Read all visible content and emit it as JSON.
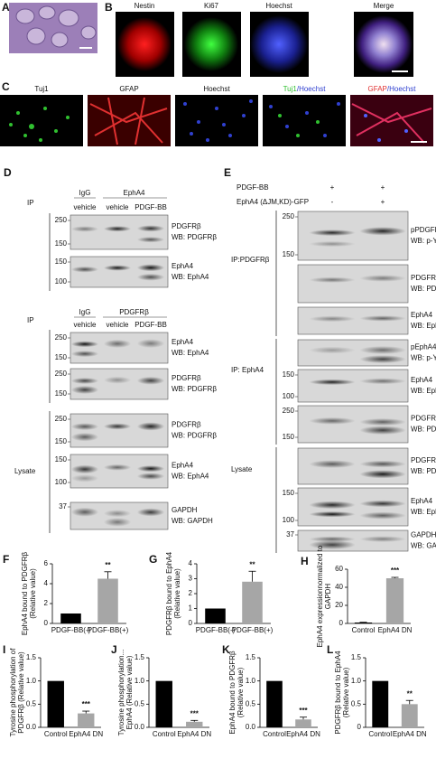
{
  "A": {
    "letter": "A"
  },
  "B": {
    "letter": "B",
    "labels": [
      "Nestin",
      "Ki67",
      "Hoechst",
      "Merge"
    ]
  },
  "C": {
    "letter": "C",
    "labels": [
      "Tuj1",
      "GFAP",
      "Hoechst",
      [
        "Tuj1",
        "/Hoechst"
      ],
      [
        "GFAP",
        "/Hoechst"
      ]
    ]
  },
  "D": {
    "letter": "D",
    "ip_blocks": [
      {
        "ip": "IP",
        "heads": [
          "IgG",
          "EphA4"
        ],
        "lanes": [
          "vehicle",
          "vehicle",
          "PDGF-BB"
        ],
        "blots": [
          {
            "markers": [
              "250",
              "150"
            ],
            "protein": "PDGFRβ",
            "wb": "WB: PDGFRβ"
          },
          {
            "markers": [
              "150",
              "100"
            ],
            "protein": "EphA4",
            "wb": "WB: EphA4"
          }
        ]
      },
      {
        "ip": "IP",
        "heads": [
          "IgG",
          "PDGFRβ"
        ],
        "lanes": [
          "vehicle",
          "vehicle",
          "PDGF-BB"
        ],
        "blots": [
          {
            "markers": [
              "250",
              "150"
            ],
            "protein": "EphA4",
            "wb": "WB: EphA4"
          },
          {
            "markers": [
              "250",
              "150"
            ],
            "protein": "PDGFRβ",
            "wb": "WB: PDGFRβ"
          }
        ]
      }
    ],
    "lysate": {
      "label": "Lysate",
      "blots": [
        {
          "markers": [
            "250",
            "150"
          ],
          "protein": "PDGFRβ",
          "wb": "WB: PDGFRβ"
        },
        {
          "markers": [
            "150",
            "100"
          ],
          "protein": "EphA4",
          "wb": "WB: EphA4"
        },
        {
          "markers": [
            "37"
          ],
          "protein": "GAPDH",
          "wb": "WB: GAPDH"
        }
      ]
    }
  },
  "E": {
    "letter": "E",
    "rows": [
      {
        "label": "PDGF-BB",
        "signs": [
          "+",
          "+"
        ]
      },
      {
        "label": "EphA4 (ΔJM,KD)-GFP",
        "signs": [
          "-",
          "+"
        ]
      }
    ],
    "groups": [
      {
        "label": "IP:PDGFRβ",
        "blots": [
          {
            "markers": [
              "250",
              "150"
            ],
            "protein": "pPDGFRβ",
            "wb": "WB: p-Y"
          },
          {
            "protein": "PDGFRβ",
            "wb": "WB: PDGFRβ"
          },
          {
            "protein": "EphA4",
            "wb": "WB: EphA4"
          }
        ]
      },
      {
        "label": "IP: EphA4",
        "blots": [
          {
            "protein": "pEphA4",
            "wb": "WB: p-Y"
          },
          {
            "markers": [
              "150",
              "100"
            ],
            "protein": "EphA4",
            "wb": "WB: EphA4"
          },
          {
            "markers": [
              "250",
              "150"
            ],
            "protein": "PDGFRβ",
            "wb": "WB: PDGFRβ"
          }
        ]
      },
      {
        "label": "Lysate",
        "blots": [
          {
            "protein": "PDGFRβ",
            "wb": "WB: PDGFRβ"
          },
          {
            "markers": [
              "150",
              "100"
            ],
            "protein": "EphA4",
            "wb": "WB: EphA4"
          },
          {
            "markers": [
              "37"
            ],
            "protein": "GAPDH",
            "wb": "WB: GAPDH"
          }
        ]
      }
    ]
  },
  "chart_data": [
    {
      "type": "bar",
      "panel": "F",
      "ylabel": [
        "EphA4 bound to PDGFRβ",
        "(Relative value)"
      ],
      "categories": [
        "PDGF-BB(-)",
        "PDGF-BB(+)"
      ],
      "values": [
        1,
        4.5
      ],
      "errors": [
        0,
        0.7
      ],
      "colors": [
        "#000000",
        "#a6a6a6"
      ],
      "ylim": [
        0,
        6
      ],
      "yticks": [
        0,
        2,
        4,
        6
      ],
      "annotation": "**"
    },
    {
      "type": "bar",
      "panel": "G",
      "ylabel": [
        "PDGFRβ bound to EphA4",
        "(Relative value)"
      ],
      "categories": [
        "PDGF-BB(-)",
        "PDGF-BB(+)"
      ],
      "values": [
        1,
        2.8
      ],
      "errors": [
        0,
        0.7
      ],
      "colors": [
        "#000000",
        "#a6a6a6"
      ],
      "ylim": [
        0,
        4
      ],
      "yticks": [
        0,
        1,
        2,
        3,
        4
      ],
      "annotation": "**"
    },
    {
      "type": "bar",
      "panel": "H",
      "ylabel": [
        "EphA4 expressionnormalized to",
        "GAPDH"
      ],
      "categories": [
        "Control",
        "EphA4 DN"
      ],
      "values": [
        1,
        50
      ],
      "errors": [
        0.3,
        1
      ],
      "colors": [
        "#000000",
        "#a6a6a6"
      ],
      "ylim": [
        0,
        60
      ],
      "yticks": [
        0,
        20,
        40,
        60
      ],
      "annotation": "***"
    },
    {
      "type": "bar",
      "panel": "I",
      "ylabel": [
        "Tyrosine phosphorylation of",
        "PDGFRβ (Relative value)"
      ],
      "categories": [
        "Control",
        "EphA4 DN"
      ],
      "values": [
        1.0,
        0.3
      ],
      "errors": [
        0,
        0.05
      ],
      "colors": [
        "#000000",
        "#a6a6a6"
      ],
      "ylim": [
        0,
        1.5
      ],
      "yticks": [
        {
          "value": 0,
          "label": "0.0"
        },
        0.5,
        {
          "value": 1,
          "label": "1.0"
        },
        1.5
      ],
      "annotation": "***"
    },
    {
      "type": "bar",
      "panel": "J",
      "ylabel": [
        "Tyrosine phosphorylation...",
        "EphA4 (Relative value)"
      ],
      "categories": [
        "Control",
        "EphA4 DN"
      ],
      "values": [
        1.0,
        0.12
      ],
      "errors": [
        0,
        0.03
      ],
      "colors": [
        "#000000",
        "#a6a6a6"
      ],
      "ylim": [
        0,
        1.5
      ],
      "yticks": [
        {
          "value": 0,
          "label": "0.0"
        },
        0.5,
        {
          "value": 1,
          "label": "1.0"
        },
        1.5
      ],
      "annotation": "***"
    },
    {
      "type": "bar",
      "panel": "K",
      "ylabel": [
        "EphA4 bound to PDGFRβ",
        "(Relative value)"
      ],
      "categories": [
        "Control",
        "EphA4 DN"
      ],
      "values": [
        1.0,
        0.17
      ],
      "errors": [
        0,
        0.05
      ],
      "colors": [
        "#000000",
        "#a6a6a6"
      ],
      "ylim": [
        0,
        1.5
      ],
      "yticks": [
        {
          "value": 0,
          "label": "0.0"
        },
        0.5,
        {
          "value": 1,
          "label": "1.0"
        },
        1.5
      ],
      "annotation": "***"
    },
    {
      "type": "bar",
      "panel": "L",
      "ylabel": [
        "PDGFRβ bound to EphA4",
        "(Relative value)"
      ],
      "categories": [
        "Control",
        "EphA4 DN"
      ],
      "values": [
        1.0,
        0.5
      ],
      "errors": [
        0,
        0.08
      ],
      "colors": [
        "#000000",
        "#a6a6a6"
      ],
      "ylim": [
        0,
        1.5
      ],
      "yticks": [
        0,
        0.5,
        {
          "value": 1,
          "label": "1.0"
        },
        1.5
      ],
      "annotation": "**"
    }
  ]
}
